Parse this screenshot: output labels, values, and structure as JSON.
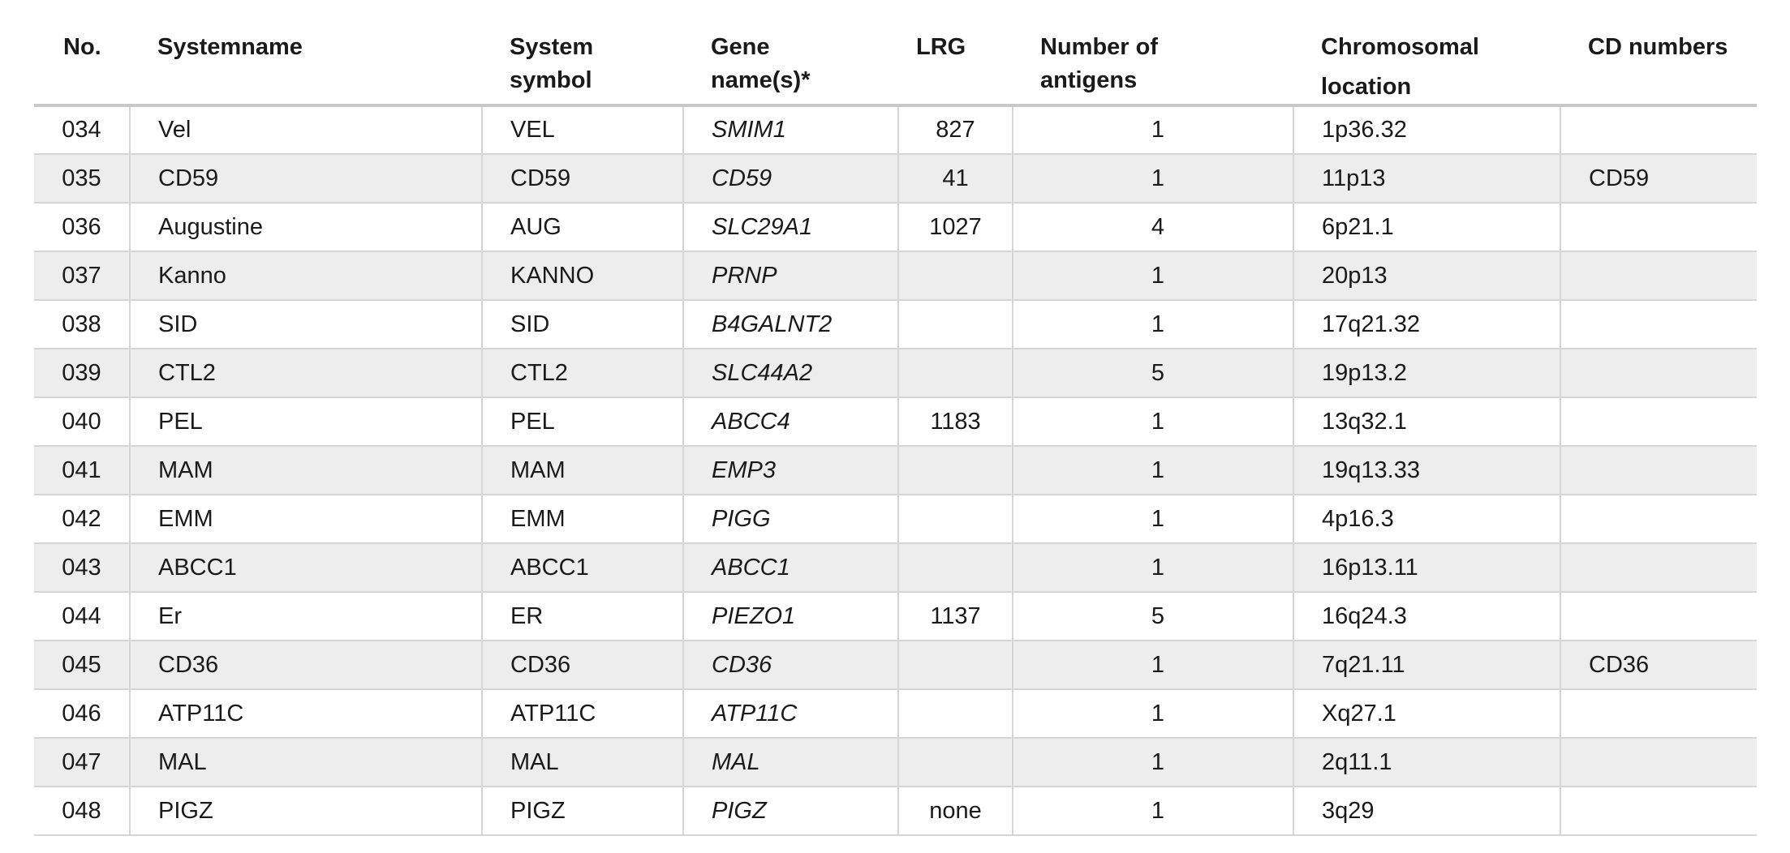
{
  "table": {
    "headers": {
      "no": "No.",
      "systemname": "Systemname",
      "symbol_line1": "System",
      "symbol_line2": "symbol",
      "gene_line1": "Gene",
      "gene_line2": "name(s)*",
      "lrg": "LRG",
      "antigens_line1": "Number of",
      "antigens_line2": "antigens",
      "location_line1": "Chromosomal",
      "location_line2": "location",
      "cd": "CD numbers"
    },
    "rows": [
      {
        "no": "034",
        "name": "Vel",
        "symbol": "VEL",
        "gene": "SMIM1",
        "lrg": "827",
        "antigens": "1",
        "location": "1p36.32",
        "cd": ""
      },
      {
        "no": "035",
        "name": "CD59",
        "symbol": "CD59",
        "gene": "CD59",
        "lrg": "41",
        "antigens": "1",
        "location": "11p13",
        "cd": "CD59"
      },
      {
        "no": "036",
        "name": "Augustine",
        "symbol": "AUG",
        "gene": "SLC29A1",
        "lrg": "1027",
        "antigens": "4",
        "location": "6p21.1",
        "cd": ""
      },
      {
        "no": "037",
        "name": "Kanno",
        "symbol": "KANNO",
        "gene": "PRNP",
        "lrg": "",
        "antigens": "1",
        "location": "20p13",
        "cd": ""
      },
      {
        "no": "038",
        "name": "SID",
        "symbol": "SID",
        "gene": "B4GALNT2",
        "lrg": "",
        "antigens": "1",
        "location": "17q21.32",
        "cd": ""
      },
      {
        "no": "039",
        "name": "CTL2",
        "symbol": "CTL2",
        "gene": "SLC44A2",
        "lrg": "",
        "antigens": "5",
        "location": "19p13.2",
        "cd": ""
      },
      {
        "no": "040",
        "name": "PEL",
        "symbol": "PEL",
        "gene": "ABCC4",
        "lrg": "1183",
        "antigens": "1",
        "location": "13q32.1",
        "cd": ""
      },
      {
        "no": "041",
        "name": "MAM",
        "symbol": "MAM",
        "gene": "EMP3",
        "lrg": "",
        "antigens": "1",
        "location": "19q13.33",
        "cd": ""
      },
      {
        "no": "042",
        "name": "EMM",
        "symbol": "EMM",
        "gene": "PIGG",
        "lrg": "",
        "antigens": "1",
        "location": "4p16.3",
        "cd": ""
      },
      {
        "no": "043",
        "name": "ABCC1",
        "symbol": "ABCC1",
        "gene": "ABCC1",
        "lrg": "",
        "antigens": "1",
        "location": "16p13.11",
        "cd": ""
      },
      {
        "no": "044",
        "name": "Er",
        "symbol": "ER",
        "gene": "PIEZO1",
        "lrg": "1137",
        "antigens": "5",
        "location": "16q24.3",
        "cd": ""
      },
      {
        "no": "045",
        "name": "CD36",
        "symbol": "CD36",
        "gene": "CD36",
        "lrg": "",
        "antigens": "1",
        "location": "7q21.11",
        "cd": "CD36"
      },
      {
        "no": "046",
        "name": "ATP11C",
        "symbol": "ATP11C",
        "gene": "ATP11C",
        "lrg": "",
        "antigens": "1",
        "location": "Xq27.1",
        "cd": ""
      },
      {
        "no": "047",
        "name": "MAL",
        "symbol": "MAL",
        "gene": "MAL",
        "lrg": "",
        "antigens": "1",
        "location": "2q11.1",
        "cd": ""
      },
      {
        "no": "048",
        "name": "PIGZ",
        "symbol": "PIGZ",
        "gene": "PIGZ",
        "lrg": "none",
        "antigens": "1",
        "location": "3q29",
        "cd": ""
      }
    ]
  }
}
